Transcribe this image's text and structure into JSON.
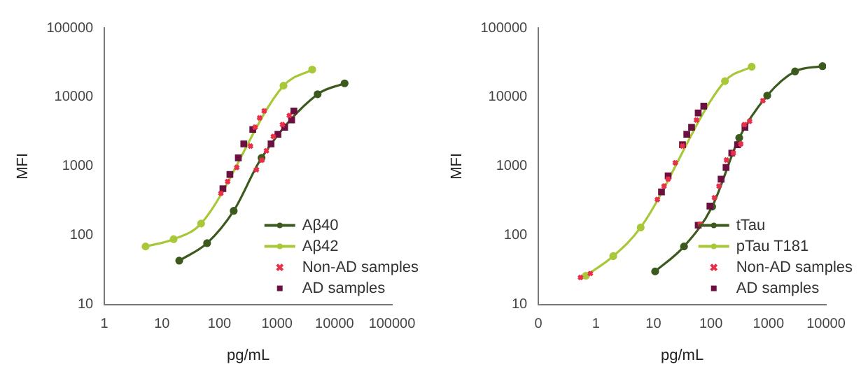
{
  "chart_data": [
    {
      "type": "line",
      "xlabel": "pg/mL",
      "ylabel": "MFI",
      "log": "xy",
      "xlim": [
        1,
        100000
      ],
      "ylim": [
        10,
        100000
      ],
      "xticks": [
        1,
        10,
        100,
        1000,
        10000,
        100000
      ],
      "yticks": [
        10,
        100,
        1000,
        10000,
        100000
      ],
      "grid": false,
      "legend": "bottom right",
      "series": [
        {
          "name": "Aβ40",
          "type": "line",
          "marker": "circle",
          "color": "#3d5a1e",
          "x": [
            20,
            61,
            177,
            540,
            5100,
            15000
          ],
          "values": [
            43,
            77,
            226,
            1320,
            11000,
            15800
          ]
        },
        {
          "name": "Aβ42",
          "type": "line",
          "marker": "circle",
          "color": "#a8c83a",
          "x": [
            5.2,
            16,
            48,
            1300,
            4100
          ],
          "values": [
            69,
            88,
            148,
            14600,
            25000
          ]
        },
        {
          "name": "Non-AD samples",
          "type": "scatter",
          "marker": "cross",
          "color": "#e8304a",
          "x": [
            106,
            139,
            200,
            347,
            417,
            500,
            600,
            440,
            547,
            656,
            865,
            1245,
            1640
          ],
          "values": [
            405,
            600,
            960,
            1950,
            3660,
            5000,
            6300,
            890,
            1220,
            1670,
            2700,
            4000,
            5400
          ]
        },
        {
          "name": "AD samples",
          "type": "scatter",
          "marker": "square",
          "color": "#6b1040",
          "x": [
            115,
            152,
            213,
            265,
            380,
            790,
            1040,
            1360,
            1800,
            1970
          ],
          "values": [
            473,
            760,
            1320,
            2100,
            3400,
            2100,
            2900,
            3660,
            4650,
            6300
          ]
        }
      ]
    },
    {
      "type": "line",
      "xlabel": "pg/mL",
      "ylabel": "MFI",
      "log": "xy",
      "xlim": [
        0.1,
        10000
      ],
      "ylim": [
        10,
        100000
      ],
      "xticks": [
        {
          "value": 0.1,
          "label": "0"
        },
        1,
        10,
        100,
        1000,
        10000
      ],
      "yticks": [
        10,
        100,
        1000,
        10000,
        100000
      ],
      "grid": false,
      "legend": "bottom right",
      "series": [
        {
          "name": "tTau",
          "type": "line",
          "marker": "circle",
          "color": "#3d5a1e",
          "x": [
            10.7,
            34,
            105,
            310,
            950,
            2900,
            8700
          ],
          "values": [
            30,
            69,
            260,
            2570,
            10500,
            23500,
            28000
          ]
        },
        {
          "name": "pTau T181",
          "type": "line",
          "marker": "circle",
          "color": "#a8c83a",
          "x": [
            0.67,
            2,
            6,
            175,
            510
          ],
          "values": [
            26,
            50,
            130,
            17000,
            27500
          ]
        },
        {
          "name": "Non-AD samples",
          "type": "scatter",
          "marker": "cross",
          "color": "#e8304a",
          "x": [
            0.54,
            0.8,
            11.7,
            15.3,
            18,
            24,
            32,
            56,
            65,
            115,
            138,
            186,
            245,
            330,
            380,
            470,
            800
          ],
          "values": [
            24.5,
            28,
            330,
            515,
            650,
            1120,
            1950,
            4650,
            145,
            350,
            515,
            1230,
            1550,
            2100,
            3990,
            4470,
            8900
          ]
        },
        {
          "name": "AD samples",
          "type": "scatter",
          "marker": "square",
          "color": "#6b1040",
          "x": [
            13.8,
            18,
            32,
            38,
            46,
            60,
            75,
            60,
            96,
            150,
            183,
            230,
            290,
            390
          ],
          "values": [
            425,
            725,
            2040,
            2900,
            3660,
            5900,
            7400,
            140,
            265,
            650,
            960,
            1550,
            2040,
            3660
          ]
        }
      ]
    }
  ]
}
